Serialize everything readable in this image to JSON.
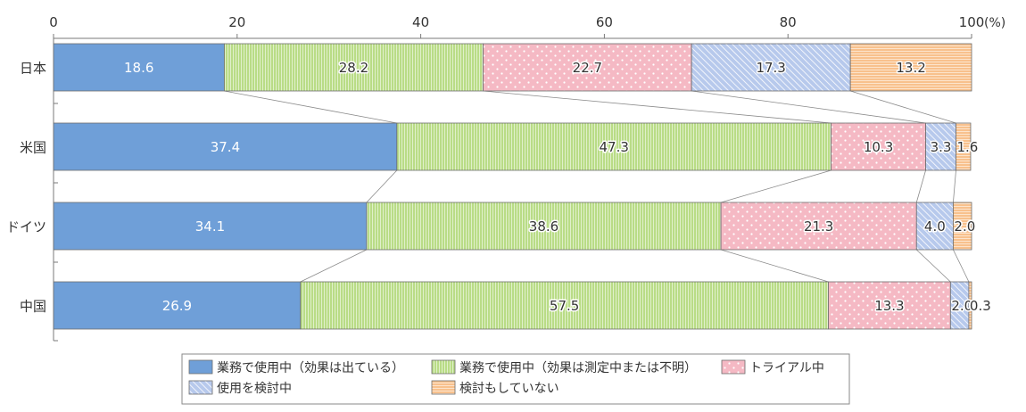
{
  "chart_data": {
    "type": "bar",
    "orientation": "horizontal",
    "stacked": true,
    "title": "",
    "xlabel": "",
    "ylabel": "",
    "xlim": [
      0,
      100
    ],
    "x_ticks": [
      "0",
      "20",
      "40",
      "60",
      "80",
      "100"
    ],
    "x_unit": "(%)",
    "categories": [
      "日本",
      "米国",
      "ドイツ",
      "中国"
    ],
    "series": [
      {
        "name": "業務で使用中（効果は出ている）",
        "color": "#6f9fd8",
        "pattern": "solid",
        "values": [
          18.6,
          37.4,
          34.1,
          26.9
        ]
      },
      {
        "name": "業務で使用中（効果は測定中または不明）",
        "color": "#b9dc86",
        "pattern": "vertical-lines",
        "values": [
          28.2,
          47.3,
          38.6,
          57.5
        ]
      },
      {
        "name": "トライアル中",
        "color": "#f5b9c4",
        "pattern": "dots",
        "values": [
          22.7,
          10.3,
          21.3,
          13.3
        ]
      },
      {
        "name": "使用を検討中",
        "color": "#b7c9ec",
        "pattern": "diagonal-lines",
        "values": [
          17.3,
          3.3,
          4.0,
          2.0
        ]
      },
      {
        "name": "検討もしていない",
        "color": "#f8c18d",
        "pattern": "horizontal-lines",
        "values": [
          13.2,
          1.6,
          2.0,
          0.3
        ]
      }
    ],
    "data_labels": [
      [
        "18.6",
        "37.4",
        "34.1",
        "26.9"
      ],
      [
        "28.2",
        "47.3",
        "38.6",
        "57.5"
      ],
      [
        "22.7",
        "10.3",
        "21.3",
        "13.3"
      ],
      [
        "17.3",
        "3.3",
        "4.0",
        "2.0"
      ],
      [
        "13.2",
        "1.6",
        "2.0",
        "0.3"
      ]
    ],
    "connector_lines": true,
    "grid": false,
    "legend_position": "bottom"
  }
}
